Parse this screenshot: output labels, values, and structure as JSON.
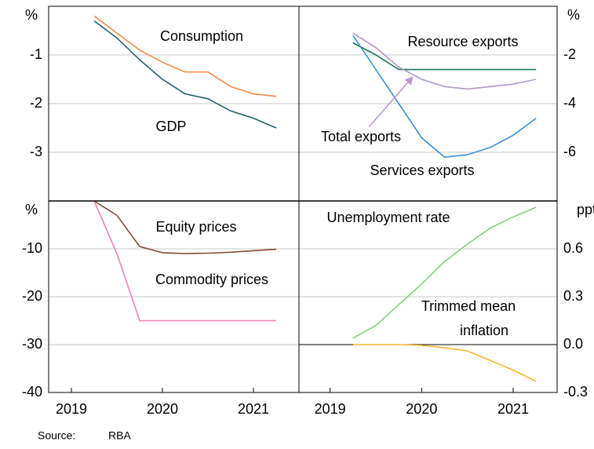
{
  "chart_data": [
    {
      "type": "line",
      "y_label": "%",
      "yaxis_side": "left",
      "xlim": [
        2019.25,
        2022.0
      ],
      "ylim": [
        -4,
        0
      ],
      "yticks": [
        -1,
        -2,
        -3
      ],
      "grid": true,
      "series": [
        {
          "name": "Consumption",
          "color": "#f5884a",
          "x": [
            2019.75,
            2020,
            2020.25,
            2020.5,
            2020.75,
            2021,
            2021.25,
            2021.5,
            2021.75
          ],
          "values": [
            -0.2,
            -0.55,
            -0.9,
            -1.15,
            -1.35,
            -1.35,
            -1.65,
            -1.8,
            -1.85
          ]
        },
        {
          "name": "GDP",
          "color": "#245f6b",
          "x": [
            2019.75,
            2020,
            2020.25,
            2020.5,
            2020.75,
            2021,
            2021.25,
            2021.5,
            2021.75
          ],
          "values": [
            -0.3,
            -0.65,
            -1.1,
            -1.5,
            -1.8,
            -1.9,
            -2.15,
            -2.3,
            -2.5
          ]
        }
      ]
    },
    {
      "type": "line",
      "y_label": "%",
      "yaxis_side": "right",
      "xlim": [
        2019.16,
        2021.98
      ],
      "ylim": [
        -8,
        0
      ],
      "yticks": [
        -2,
        -4,
        -6
      ],
      "grid": true,
      "series": [
        {
          "name": "Resource exports",
          "color": "#1f7360",
          "x": [
            2019.75,
            2020,
            2020.25,
            2020.5,
            2020.75,
            2021,
            2021.25,
            2021.5,
            2021.75
          ],
          "values": [
            -1.5,
            -2.0,
            -2.6,
            -2.6,
            -2.6,
            -2.6,
            -2.6,
            -2.6,
            -2.6
          ]
        },
        {
          "name": "Total exports",
          "color": "#b995c8",
          "x": [
            2019.75,
            2020,
            2020.25,
            2020.5,
            2020.75,
            2021,
            2021.25,
            2021.5,
            2021.75
          ],
          "values": [
            -1.1,
            -1.7,
            -2.5,
            -3.0,
            -3.3,
            -3.4,
            -3.3,
            -3.2,
            -3.0
          ]
        },
        {
          "name": "Services exports",
          "color": "#3a8fd6",
          "x": [
            2019.75,
            2020,
            2020.25,
            2020.5,
            2020.75,
            2021,
            2021.25,
            2021.5,
            2021.75
          ],
          "values": [
            -1.2,
            -2.6,
            -4.0,
            -5.4,
            -6.2,
            -6.1,
            -5.8,
            -5.3,
            -4.6
          ]
        }
      ]
    },
    {
      "type": "line",
      "y_label": "%",
      "yaxis_side": "left",
      "xlim": [
        2019.25,
        2022.0
      ],
      "ylim": [
        -40,
        0
      ],
      "yticks": [
        -10,
        -20,
        -30,
        -40
      ],
      "grid": true,
      "xticks": [
        {
          "value": 2019.5,
          "label": "2019"
        },
        {
          "value": 2020.5,
          "label": "2020"
        },
        {
          "value": 2021.5,
          "label": "2021"
        }
      ],
      "series": [
        {
          "name": "Equity prices",
          "color": "#8a4a38",
          "x": [
            2019.75,
            2020,
            2020.25,
            2020.5,
            2020.75,
            2021,
            2021.25,
            2021.5,
            2021.75
          ],
          "values": [
            0,
            -3,
            -9.5,
            -10.8,
            -11,
            -10.9,
            -10.7,
            -10.4,
            -10.1
          ]
        },
        {
          "name": "Commodity prices",
          "color": "#f47fb5",
          "x": [
            2019.75,
            2020,
            2020.25,
            2020.5,
            2020.75,
            2021,
            2021.25,
            2021.5,
            2021.75
          ],
          "values": [
            0,
            -11,
            -25,
            -25,
            -25,
            -25,
            -25,
            -25,
            -25
          ]
        }
      ]
    },
    {
      "type": "line",
      "y_label": "ppt",
      "yaxis_side": "right",
      "xlim": [
        2019.16,
        2021.98
      ],
      "ylim": [
        -0.3,
        0.9
      ],
      "grid": true,
      "zero_line": true,
      "yticks": [
        {
          "value": 0.6,
          "label": "0.6"
        },
        {
          "value": 0.3,
          "label": "0.3"
        },
        {
          "value": 0,
          "label": "0.0"
        },
        {
          "value": -0.3,
          "label": "-0.3"
        }
      ],
      "xticks": [
        {
          "value": 2019.5,
          "label": "2019"
        },
        {
          "value": 2020.5,
          "label": "2020"
        },
        {
          "value": 2021.5,
          "label": "2021"
        }
      ],
      "series": [
        {
          "name": "Unemployment rate",
          "color": "#7fd17a",
          "x": [
            2019.75,
            2020,
            2020.25,
            2020.5,
            2020.75,
            2021,
            2021.25,
            2021.5,
            2021.75
          ],
          "values": [
            0.04,
            0.12,
            0.25,
            0.38,
            0.52,
            0.63,
            0.73,
            0.8,
            0.86
          ]
        },
        {
          "name": "Trimmed mean inflation",
          "color": "#f6b52b",
          "x": [
            2019.75,
            2020,
            2020.25,
            2020.5,
            2020.75,
            2021,
            2021.25,
            2021.5,
            2021.75
          ],
          "values": [
            0,
            0,
            0,
            -0.005,
            -0.02,
            -0.04,
            -0.1,
            -0.16,
            -0.23
          ]
        }
      ]
    }
  ],
  "source": {
    "label": "Source:",
    "text": "RBA"
  }
}
